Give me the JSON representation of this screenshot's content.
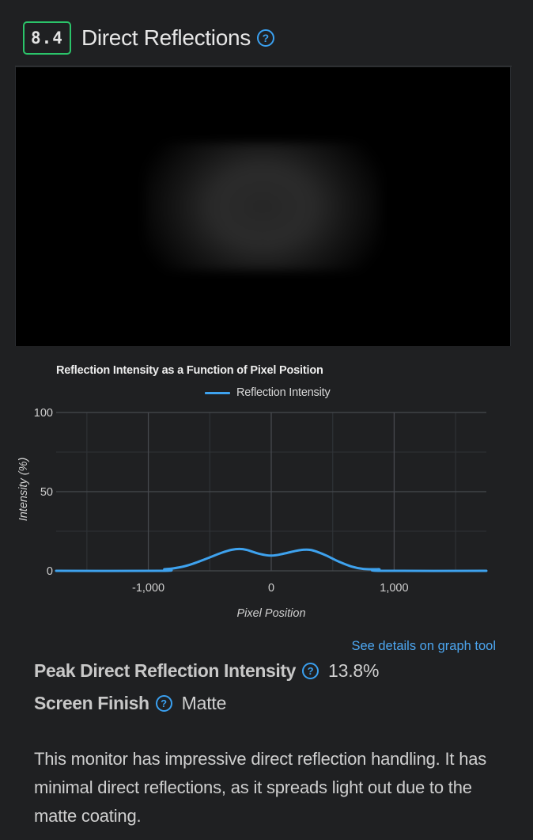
{
  "section": {
    "score": "8.4",
    "title": "Direct Reflections",
    "help_icon": "question-circle-icon"
  },
  "chart_data": {
    "type": "line",
    "title": "Reflection Intensity as a Function of Pixel Position",
    "xlabel": "Pixel Position",
    "ylabel": "Intensity (%)",
    "xlim": [
      -1750,
      1750
    ],
    "ylim": [
      0,
      100
    ],
    "xticks": [
      -1000,
      0,
      1000
    ],
    "xtick_labels": [
      "-1,000",
      "0",
      "1,000"
    ],
    "yticks": [
      0,
      50,
      100
    ],
    "ytick_labels": [
      "0",
      "50",
      "100"
    ],
    "grid": true,
    "legend_position": "top-center",
    "series": [
      {
        "name": "Reflection Intensity",
        "color": "#3ea2ee",
        "x": [
          -1750,
          -880,
          -870,
          -800,
          -700,
          -600,
          -500,
          -400,
          -320,
          -260,
          -200,
          -100,
          0,
          100,
          200,
          260,
          320,
          380,
          450,
          550,
          650,
          750,
          850,
          880,
          890,
          1750
        ],
        "y": [
          0,
          0,
          1,
          1.5,
          3,
          5.5,
          8.5,
          11.5,
          13.3,
          13.8,
          13.2,
          10.8,
          9.6,
          10.8,
          12.6,
          13.3,
          13.2,
          11.8,
          9.6,
          5.8,
          2.8,
          1.2,
          1,
          1,
          0,
          0
        ]
      }
    ]
  },
  "links": {
    "graph_tool": "See details on graph tool"
  },
  "stats": [
    {
      "label": "Peak Direct Reflection Intensity",
      "value": "13.8%",
      "help_icon": "question-circle-icon"
    },
    {
      "label": "Screen Finish",
      "value": "Matte",
      "help_icon": "question-circle-icon"
    }
  ],
  "description": "This monitor has impressive direct reflection handling. It has minimal direct reflections, as it spreads light out due to the matte coating."
}
